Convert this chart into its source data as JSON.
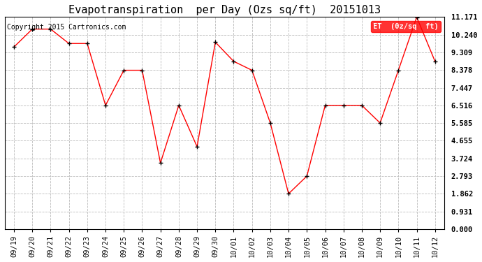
{
  "title": "Evapotranspiration  per Day (Ozs sq/ft)  20151013",
  "copyright": "Copyright 2015 Cartronics.com",
  "legend_label": "ET  (0z/sq  ft)",
  "x_labels": [
    "09/19",
    "09/20",
    "09/21",
    "09/22",
    "09/23",
    "09/24",
    "09/25",
    "09/26",
    "09/27",
    "09/28",
    "09/29",
    "09/30",
    "10/01",
    "10/02",
    "10/03",
    "10/04",
    "10/05",
    "10/06",
    "10/07",
    "10/08",
    "10/09",
    "10/10",
    "10/11",
    "10/12"
  ],
  "y_values": [
    9.6,
    10.54,
    10.54,
    9.78,
    9.78,
    6.52,
    8.37,
    8.37,
    3.48,
    6.52,
    4.34,
    9.85,
    8.84,
    8.37,
    5.59,
    1.86,
    2.79,
    6.52,
    6.52,
    6.52,
    5.59,
    8.37,
    11.17,
    8.84
  ],
  "y_ticks": [
    0.0,
    0.931,
    1.862,
    2.793,
    3.724,
    4.655,
    5.585,
    6.516,
    7.447,
    8.378,
    9.309,
    10.24,
    11.171
  ],
  "line_color": "red",
  "marker_color": "black",
  "marker_size": 4,
  "grid_color": "#bbbbbb",
  "bg_color": "white",
  "title_fontsize": 11,
  "tick_fontsize": 7.5,
  "copyright_fontsize": 7,
  "legend_bg": "red",
  "legend_text_color": "white",
  "legend_fontsize": 7.5
}
